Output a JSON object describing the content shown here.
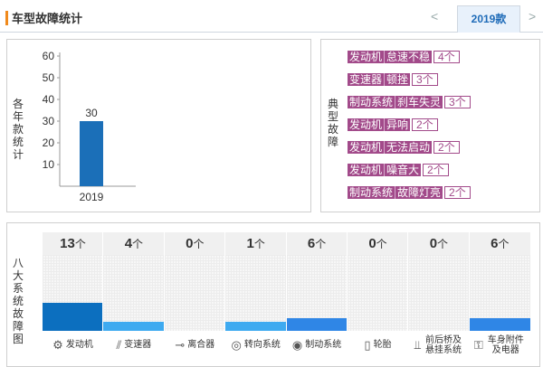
{
  "header": {
    "title": "车型故障统计",
    "prev_arrow": "<",
    "year_tab": "2019款",
    "next_arrow": ">"
  },
  "year_chart": {
    "ylabel": "各年款统计",
    "chart_data": {
      "type": "bar",
      "categories": [
        "2019"
      ],
      "values": [
        30
      ],
      "ylim": [
        0,
        60
      ],
      "yticks": [
        10,
        20,
        30,
        40,
        50,
        60
      ],
      "data_labels": [
        "30"
      ],
      "color": "#1b6fb8"
    }
  },
  "typical_faults": {
    "label": "典型故障",
    "items": [
      {
        "system": "发动机",
        "desc": "怠速不稳",
        "count": "4个"
      },
      {
        "system": "变速器",
        "desc": "顿挫",
        "count": "3个"
      },
      {
        "system": "制动系统",
        "desc": "刹车失灵",
        "count": "3个"
      },
      {
        "system": "发动机",
        "desc": "异响",
        "count": "2个"
      },
      {
        "system": "发动机",
        "desc": "无法启动",
        "count": "2个"
      },
      {
        "system": "发动机",
        "desc": "噪音大",
        "count": "2个"
      },
      {
        "system": "制动系统",
        "desc": "故障灯亮",
        "count": "2个"
      }
    ]
  },
  "systems": {
    "label": "八大系统故障图",
    "unit": "个",
    "max_value": 13,
    "items": [
      {
        "name": "发动机",
        "count": 13,
        "icon": "engine-icon",
        "color": "#0c6fbf"
      },
      {
        "name": "变速器",
        "count": 4,
        "icon": "gearbox-icon",
        "color": "#3eaaf0"
      },
      {
        "name": "离合器",
        "count": 0,
        "icon": "clutch-icon",
        "color": "#3eaaf0"
      },
      {
        "name": "转向系统",
        "count": 1,
        "icon": "steering-icon",
        "color": "#3eaaf0"
      },
      {
        "name": "制动系统",
        "count": 6,
        "icon": "brake-icon",
        "color": "#2f86e6"
      },
      {
        "name": "轮胎",
        "count": 0,
        "icon": "tire-icon",
        "color": "#2f86e6"
      },
      {
        "name": "前后桥及悬挂系统",
        "count": 0,
        "icon": "suspension-icon",
        "color": "#2f86e6"
      },
      {
        "name": "车身附件及电器",
        "count": 6,
        "icon": "body-electrical-icon",
        "color": "#2f86e6"
      }
    ]
  }
}
